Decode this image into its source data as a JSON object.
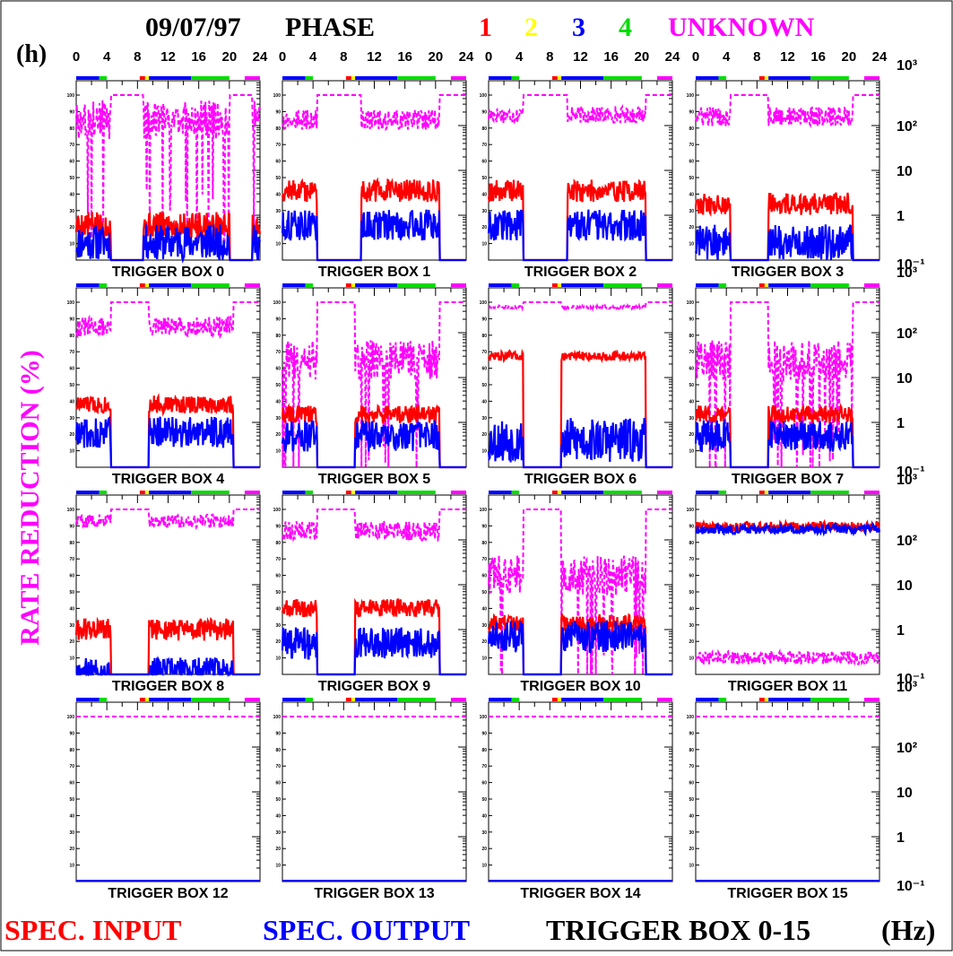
{
  "header": {
    "date": "09/07/97",
    "phase_label": "PHASE",
    "phases": [
      {
        "label": "1",
        "color": "#ff0000"
      },
      {
        "label": "2",
        "color": "#ffff00"
      },
      {
        "label": "3",
        "color": "#0000ff"
      },
      {
        "label": "4",
        "color": "#00dd00"
      },
      {
        "label": "UNKNOWN",
        "color": "#ff00ff"
      }
    ],
    "panel_tag": "(h)",
    "hour_ticks": [
      "0",
      "4",
      "8",
      "12",
      "16",
      "20",
      "24"
    ]
  },
  "y_left_label": "RATE REDUCTION (%)",
  "right_axis_ticks": [
    "10³",
    "10²",
    "10",
    "1",
    "10⁻¹"
  ],
  "footer": {
    "input_label": "SPEC. INPUT",
    "output_label": "SPEC. OUTPUT",
    "range_label": "TRIGGER BOX 0-15",
    "unit_label": "(Hz)"
  },
  "colors": {
    "input": "#ff0000",
    "output": "#0000ff",
    "reduction": "#ff00ff",
    "phase1": "#ff0000",
    "phase2": "#ffff00",
    "phase3": "#0000ff",
    "phase4": "#00dd00",
    "unknown": "#ff00ff"
  },
  "chart_data": {
    "type": "line",
    "x_unit": "hour",
    "xlim": [
      0,
      24
    ],
    "xticks": [
      0,
      4,
      8,
      12,
      16,
      20,
      24
    ],
    "left_axis": {
      "title": "RATE REDUCTION (%)",
      "lim": [
        0,
        100
      ],
      "ticks": [
        10,
        20,
        30,
        40,
        50,
        60,
        70,
        80,
        90,
        100
      ]
    },
    "right_axis": {
      "scale": "log",
      "lim": [
        0.1,
        1000
      ],
      "ticks": [
        "10⁻¹",
        "1",
        "10",
        "10²",
        "10³"
      ],
      "unit": "Hz"
    },
    "phase_bar": [
      {
        "from": 0,
        "to": 3,
        "phase": 3
      },
      {
        "from": 3,
        "to": 4,
        "phase": 4
      },
      {
        "from": 8.3,
        "to": 9,
        "phase": 1
      },
      {
        "from": 9,
        "to": 9.5,
        "phase": 2
      },
      {
        "from": 9.5,
        "to": 15,
        "phase": 3
      },
      {
        "from": 15,
        "to": 20,
        "phase": 4
      },
      {
        "from": 22,
        "to": 24,
        "phase": "UNKNOWN"
      }
    ],
    "panels": [
      {
        "title": "TRIGGER BOX 0",
        "gaps": [
          [
            4.5,
            8.8
          ],
          [
            20,
            23
          ]
        ],
        "input": {
          "level": 0.6,
          "noise": 0.3
        },
        "output": {
          "level": 0.25,
          "noise": 0.4
        },
        "reduction": {
          "level": 85,
          "noise": 12,
          "spikes": true
        }
      },
      {
        "title": "TRIGGER BOX 1",
        "gaps": [
          [
            4.5,
            10.3
          ],
          [
            20.5,
            24
          ]
        ],
        "input": {
          "level": 3.5,
          "noise": 0.25
        },
        "output": {
          "level": 0.6,
          "noise": 0.35
        },
        "reduction": {
          "level": 85,
          "noise": 6,
          "spikes": false
        }
      },
      {
        "title": "TRIGGER BOX 2",
        "gaps": [
          [
            4.5,
            10.3
          ],
          [
            20.5,
            24
          ]
        ],
        "input": {
          "level": 3.5,
          "noise": 0.25
        },
        "output": {
          "level": 0.6,
          "noise": 0.35
        },
        "reduction": {
          "level": 88,
          "noise": 5,
          "spikes": false
        }
      },
      {
        "title": "TRIGGER BOX 3",
        "gaps": [
          [
            4.5,
            9.5
          ],
          [
            20.5,
            24
          ]
        ],
        "input": {
          "level": 1.8,
          "noise": 0.25
        },
        "output": {
          "level": 0.25,
          "noise": 0.4
        },
        "reduction": {
          "level": 87,
          "noise": 6,
          "spikes": false
        }
      },
      {
        "title": "TRIGGER BOX 4",
        "gaps": [
          [
            4.5,
            9.5
          ],
          [
            20.5,
            24
          ]
        ],
        "input": {
          "level": 2.5,
          "noise": 0.2
        },
        "output": {
          "level": 0.6,
          "noise": 0.35
        },
        "reduction": {
          "level": 85,
          "noise": 6,
          "spikes": false
        }
      },
      {
        "title": "TRIGGER BOX 5",
        "gaps": [
          [
            4.5,
            9.5
          ],
          [
            20.5,
            24
          ]
        ],
        "input": {
          "level": 1.5,
          "noise": 0.2
        },
        "output": {
          "level": 0.5,
          "noise": 0.35
        },
        "reduction": {
          "level": 65,
          "noise": 12,
          "spikes": true
        }
      },
      {
        "title": "TRIGGER BOX 6",
        "gaps": [
          [
            4.5,
            9.5
          ],
          [
            20.5,
            24
          ]
        ],
        "input": {
          "level": 30,
          "noise": 0.1
        },
        "output": {
          "level": 0.4,
          "noise": 0.5
        },
        "reduction": {
          "level": 97,
          "noise": 1,
          "spikes": false
        }
      },
      {
        "title": "TRIGGER BOX 7",
        "gaps": [
          [
            4.5,
            9.5
          ],
          [
            20.5,
            24
          ]
        ],
        "input": {
          "level": 1.5,
          "noise": 0.2
        },
        "output": {
          "level": 0.5,
          "noise": 0.35
        },
        "reduction": {
          "level": 65,
          "noise": 12,
          "spikes": true
        }
      },
      {
        "title": "TRIGGER BOX 8",
        "gaps": [
          [
            4.5,
            9.5
          ],
          [
            20.5,
            24
          ]
        ],
        "input": {
          "level": 1.0,
          "noise": 0.25
        },
        "output": {
          "level": 0.12,
          "noise": 0.3
        },
        "reduction": {
          "level": 93,
          "noise": 4,
          "spikes": false
        }
      },
      {
        "title": "TRIGGER BOX 9",
        "gaps": [
          [
            4.5,
            9.5
          ],
          [
            20.5,
            24
          ]
        ],
        "input": {
          "level": 3.0,
          "noise": 0.2
        },
        "output": {
          "level": 0.5,
          "noise": 0.35
        },
        "reduction": {
          "level": 87,
          "noise": 6,
          "spikes": false
        }
      },
      {
        "title": "TRIGGER BOX 10",
        "gaps": [
          [
            4.5,
            9.5
          ],
          [
            20.5,
            24
          ]
        ],
        "input": {
          "level": 1.4,
          "noise": 0.2
        },
        "output": {
          "level": 0.7,
          "noise": 0.35
        },
        "reduction": {
          "level": 60,
          "noise": 12,
          "spikes": true
        }
      },
      {
        "title": "TRIGGER BOX 11",
        "gaps": [],
        "input": {
          "level": 200,
          "noise": 0.1
        },
        "output": {
          "level": 170,
          "noise": 0.1
        },
        "reduction": {
          "level": 10,
          "noise": 4,
          "spikes": false
        }
      },
      {
        "title": "TRIGGER BOX 12",
        "empty": true
      },
      {
        "title": "TRIGGER BOX 13",
        "empty": true
      },
      {
        "title": "TRIGGER BOX 14",
        "empty": true
      },
      {
        "title": "TRIGGER BOX 15",
        "empty": true
      }
    ]
  }
}
